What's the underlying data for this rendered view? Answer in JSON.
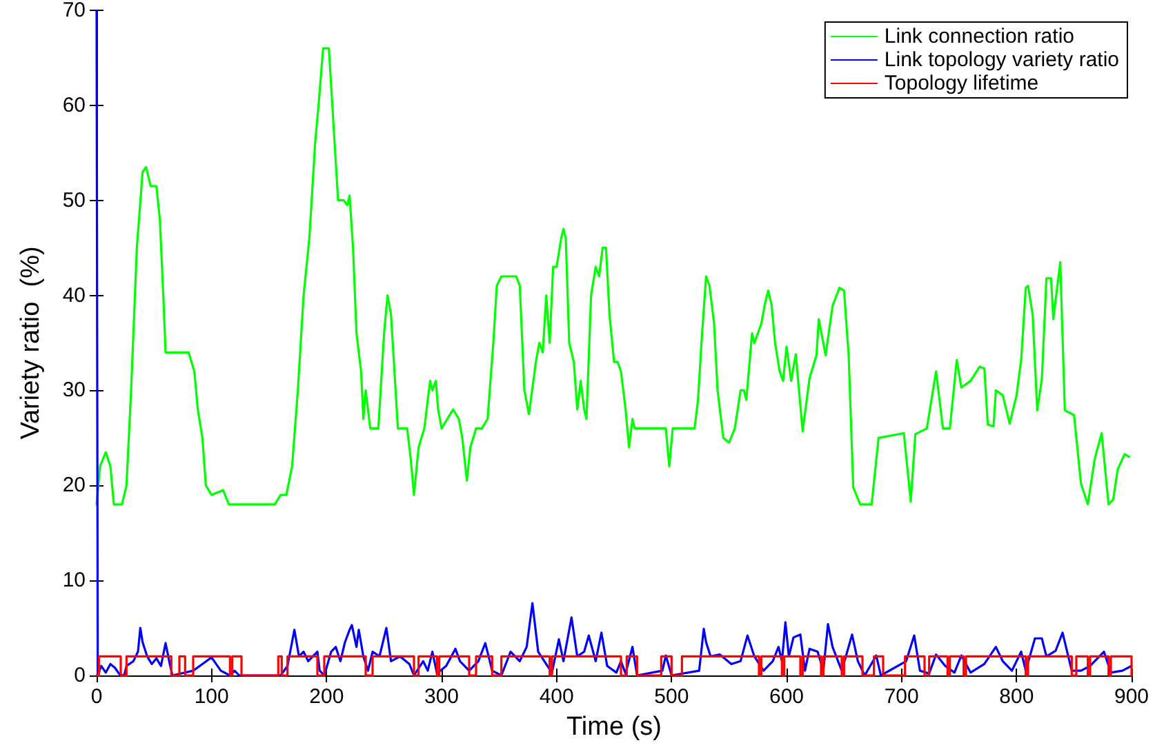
{
  "chart_data": {
    "type": "line",
    "xlabel": "Time (s)",
    "ylabel": "Variety ratio  (%)",
    "xlim": [
      0,
      900
    ],
    "xticks": [
      0,
      100,
      200,
      300,
      400,
      500,
      600,
      700,
      800,
      900
    ],
    "ylim": [
      0,
      70
    ],
    "yticks": [
      0,
      10,
      20,
      30,
      40,
      50,
      60,
      70
    ],
    "grid": false,
    "legend": "top right",
    "marker": "none",
    "line_style": "solid",
    "series": [
      {
        "name": "Link connection ratio",
        "color": "#00ff00",
        "x": [
          0,
          3,
          8,
          12,
          15,
          22,
          26,
          30,
          35,
          40,
          43,
          47,
          52,
          55,
          58,
          60,
          70,
          80,
          85,
          88,
          92,
          95,
          100,
          110,
          115,
          140,
          155,
          160,
          165,
          170,
          175,
          180,
          185,
          190,
          193,
          197,
          202,
          205,
          210,
          215,
          218,
          220,
          223,
          226,
          230,
          232,
          234,
          238,
          245,
          250,
          253,
          256,
          260,
          262,
          270,
          273,
          276,
          280,
          285,
          290,
          292,
          295,
          297,
          300,
          305,
          310,
          315,
          318,
          322,
          325,
          330,
          335,
          340,
          345,
          348,
          352,
          365,
          368,
          372,
          376,
          382,
          385,
          388,
          391,
          394,
          397,
          400,
          404,
          406,
          408,
          411,
          415,
          418,
          421,
          424,
          426,
          430,
          434,
          437,
          440,
          443,
          446,
          450,
          453,
          456,
          460,
          463,
          466,
          468,
          475,
          495,
          498,
          501,
          510,
          520,
          523,
          526,
          530,
          533,
          537,
          540,
          545,
          550,
          555,
          560,
          563,
          565,
          570,
          572,
          575,
          578,
          581,
          584,
          587,
          590,
          594,
          597,
          600,
          604,
          608,
          614,
          620,
          626,
          628,
          634,
          640,
          646,
          650,
          654,
          658,
          664,
          674,
          680,
          702,
          708,
          712,
          722,
          730,
          736,
          742,
          748,
          752,
          760,
          768,
          772,
          775,
          780,
          782,
          788,
          794,
          800,
          804,
          808,
          810,
          814,
          818,
          822,
          826,
          830,
          832,
          838,
          842,
          850,
          856,
          862,
          868,
          874,
          880,
          884,
          888,
          894,
          898
        ],
        "values": [
          18,
          22,
          23.5,
          22,
          18,
          18,
          20,
          30,
          45,
          53,
          53.5,
          51.5,
          51.5,
          48,
          40,
          34,
          34,
          34,
          32,
          28,
          25,
          20,
          19,
          19.5,
          18,
          18,
          18,
          19,
          19,
          22,
          30,
          40,
          46,
          56,
          60,
          66,
          66,
          60,
          50,
          50,
          49.5,
          50.5,
          45,
          36,
          32,
          27,
          30,
          26,
          26,
          36,
          40,
          38,
          30,
          26,
          26,
          23,
          19,
          24,
          26,
          31,
          30,
          31,
          28,
          26,
          27,
          28,
          27,
          25,
          20.5,
          24,
          26,
          26,
          27,
          35,
          41,
          42,
          42,
          41,
          30,
          27.5,
          33,
          35,
          34,
          40,
          35,
          43,
          43,
          46,
          47,
          46,
          35,
          33,
          28,
          31,
          28,
          27,
          40,
          43,
          42,
          45,
          45,
          38,
          33,
          33,
          32,
          28,
          24,
          27,
          26,
          26,
          26,
          22,
          26,
          26,
          26,
          29,
          35,
          42,
          41,
          37,
          30,
          25,
          24.5,
          26,
          30,
          30,
          29,
          36,
          35,
          36,
          37,
          39,
          40.5,
          39,
          35,
          32,
          31,
          34.6,
          31,
          33.8,
          25.7,
          31.3,
          33.7,
          37.5,
          33.7,
          38.9,
          40.8,
          40.5,
          33.7,
          19.8,
          18,
          18,
          25,
          25.5,
          18.3,
          25.4,
          26,
          32,
          26,
          26,
          33.2,
          30.3,
          31,
          32.5,
          32.3,
          26.4,
          26.2,
          30,
          29.5,
          26.5,
          29.5,
          33.2,
          40.8,
          41,
          38,
          27.9,
          31.2,
          41.8,
          41.8,
          37.5,
          43.5,
          27.9,
          27.4,
          20.2,
          18,
          22.8,
          25.5,
          18,
          18.5,
          21.7,
          23.3,
          23
        ]
      },
      {
        "name": "Link topology variety ratio",
        "color": "#0000ff",
        "x": [
          0,
          1,
          4,
          8,
          12,
          16,
          20,
          24,
          26,
          32,
          36,
          38,
          40,
          44,
          48,
          52,
          56,
          60,
          64,
          66,
          84,
          92,
          100,
          108,
          116,
          120,
          124,
          160,
          166,
          172,
          176,
          180,
          184,
          188,
          192,
          194,
          198,
          204,
          208,
          212,
          216,
          220,
          222,
          226,
          228,
          232,
          236,
          240,
          246,
          252,
          256,
          264,
          272,
          276,
          284,
          288,
          292,
          296,
          304,
          312,
          316,
          324,
          332,
          338,
          344,
          352,
          360,
          368,
          374,
          379,
          384,
          392,
          396,
          402,
          406,
          413,
          418,
          424,
          428,
          434,
          439,
          444,
          452,
          456,
          460,
          466,
          470,
          492,
          495,
          500,
          524,
          528,
          530,
          534,
          542,
          552,
          560,
          566,
          572,
          580,
          588,
          593,
          596,
          599,
          602,
          606,
          612,
          616,
          620,
          627,
          632,
          636,
          640,
          648,
          657,
          662,
          668,
          678,
          682,
          704,
          711,
          716,
          724,
          730,
          738,
          746,
          752,
          760,
          772,
          782,
          788,
          796,
          804,
          808,
          816,
          822,
          826,
          834,
          840,
          848,
          856,
          864,
          876,
          882,
          892,
          900
        ],
        "values": [
          70,
          0,
          1,
          0.3,
          1.2,
          0.8,
          0.1,
          0,
          1,
          1.5,
          2.5,
          5,
          3.5,
          2,
          1.2,
          1.8,
          1,
          3.4,
          1,
          0,
          0.5,
          1.2,
          1.9,
          0.5,
          0,
          0.5,
          0,
          0,
          1,
          4.8,
          2,
          2.5,
          1.5,
          2,
          2.5,
          0.5,
          0,
          2.5,
          3,
          1.5,
          3.5,
          4.8,
          5.3,
          3,
          4.8,
          2,
          0.5,
          2.5,
          2,
          5,
          1.5,
          2,
          1.2,
          0,
          1.5,
          0.5,
          2.5,
          0.2,
          1,
          2.8,
          1.5,
          0.5,
          1.5,
          3.4,
          0.5,
          0,
          2.5,
          1.5,
          3,
          7.6,
          2.5,
          1,
          0.3,
          3.8,
          1.5,
          6.1,
          2,
          2.5,
          4.2,
          1.5,
          4.5,
          1,
          0.3,
          1.5,
          0.2,
          3,
          0,
          0.5,
          2.1,
          0,
          0.5,
          4.9,
          3.5,
          2,
          2.2,
          1.2,
          1.5,
          4.2,
          2,
          0.5,
          1.5,
          3,
          1.5,
          5.6,
          2,
          4,
          4.3,
          0.5,
          2.8,
          2.5,
          0.5,
          5.4,
          3,
          0.5,
          4.3,
          1.5,
          0,
          2.1,
          0,
          1.5,
          4.2,
          0.5,
          0.2,
          2.2,
          1,
          0.3,
          2.1,
          0.3,
          1.2,
          3,
          1.5,
          0.5,
          2.5,
          0.5,
          3.9,
          3.9,
          2,
          2.6,
          4.5,
          0.5,
          0.5,
          1,
          2.5,
          0.3,
          0.5,
          1
        ]
      },
      {
        "name": "Topology lifetime",
        "color": "#ff0000",
        "type": "step",
        "x": [
          0,
          2,
          21,
          26,
          65,
          72,
          77,
          84,
          116,
          118,
          126,
          158,
          161,
          166,
          192,
          198,
          234,
          240,
          276,
          280,
          296,
          298,
          324,
          330,
          344,
          352,
          394,
          396,
          456,
          461,
          470,
          491,
          500,
          509,
          576,
          578,
          596,
          598,
          612,
          614,
          630,
          632,
          648,
          650,
          666,
          676,
          684,
          703,
          720,
          724,
          740,
          742,
          754,
          756,
          808,
          810,
          848,
          852,
          862,
          864,
          880,
          882,
          900
        ],
        "values": [
          0,
          2,
          0,
          2,
          0,
          2,
          0,
          2,
          0,
          2,
          0,
          2,
          0,
          2,
          0,
          2,
          0,
          2,
          0,
          2,
          0,
          2,
          0,
          2,
          0,
          2,
          0,
          2,
          0,
          2,
          0,
          2,
          0,
          2,
          0,
          2,
          0,
          2,
          0,
          2,
          0,
          2,
          0,
          2,
          0,
          2,
          0,
          2,
          0,
          2,
          0,
          2,
          0,
          2,
          0,
          2,
          0,
          2,
          0,
          2,
          0,
          2,
          0
        ]
      }
    ]
  }
}
